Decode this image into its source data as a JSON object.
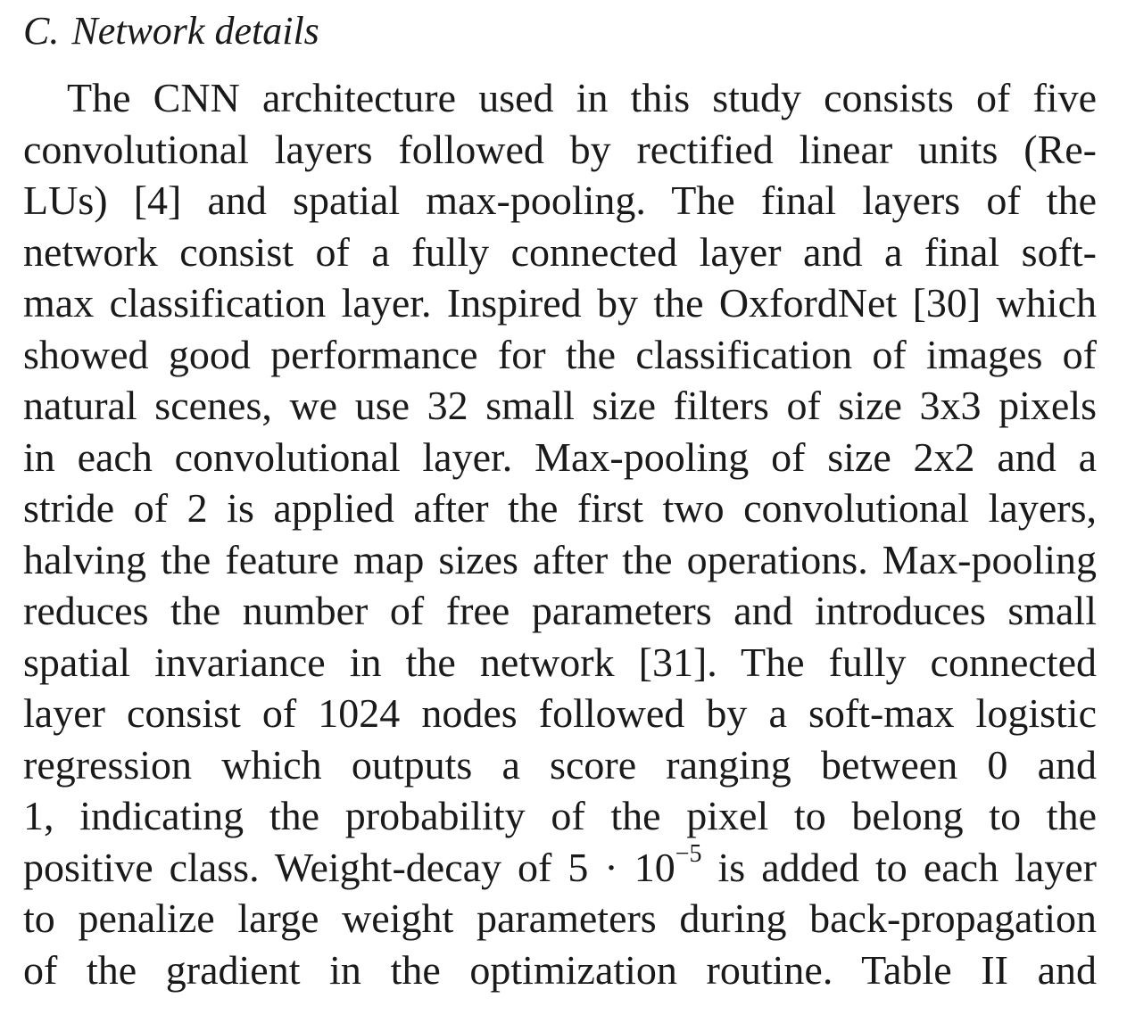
{
  "section": {
    "label": "C.",
    "title": "Network details"
  },
  "paragraph": {
    "lines": [
      "The CNN architecture used in this study consists of five",
      "convolutional layers followed by rectified linear units (Re-",
      "LUs) [4] and spatial max-pooling. The final layers of the",
      "network consist of a fully connected layer and a final soft-",
      "max classification layer. Inspired by the OxfordNet [30] which",
      "showed good performance for the classification of images of",
      "natural scenes, we use 32 small size filters of size 3x3 pixels",
      "in each convolutional layer. Max-pooling of size 2x2 and a",
      "stride of 2 is applied after the first two convolutional layers,",
      "halving the feature map sizes after the operations. Max-pooling",
      "reduces the number of free parameters and introduces small",
      "spatial invariance in the network [31]. The fully connected",
      "layer consist of 1024 nodes followed by a soft-max logistic",
      "regression which outputs a score ranging between 0 and",
      "1, indicating the probability of the pixel to belong to the"
    ],
    "line16": {
      "before": "positive class. Weight-decay of 5 · 10",
      "exponent": "−5",
      "after": " is added to each layer"
    },
    "line17": "to penalize large weight parameters during back-propagation",
    "line18": "of the gradient in the optimization routine. Table II and"
  }
}
